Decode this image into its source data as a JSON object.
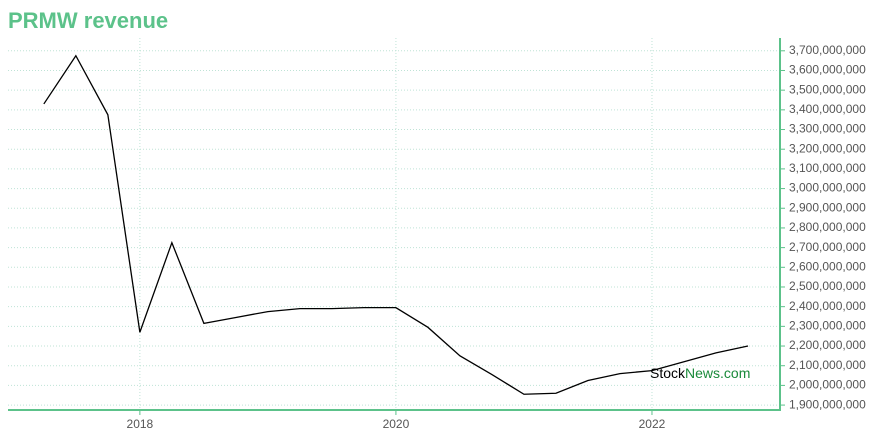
{
  "chart_data": {
    "type": "line",
    "title": "PRMW revenue",
    "watermark": {
      "first": "Stock",
      "second": "News.com"
    },
    "x": [
      2017.25,
      2017.5,
      2017.75,
      2018,
      2018.25,
      2018.5,
      2018.75,
      2019,
      2019.25,
      2019.5,
      2019.75,
      2020,
      2020.25,
      2020.5,
      2020.75,
      2021,
      2021.25,
      2021.5,
      2021.75,
      2022,
      2022.25,
      2022.5,
      2022.75
    ],
    "series": [
      {
        "color": "#000000",
        "values": [
          3430000000,
          3675000000,
          3375000000,
          2270000000,
          2725000000,
          2315000000,
          2345000000,
          2375000000,
          2390000000,
          2390000000,
          2395000000,
          2395000000,
          2295000000,
          2150000000,
          2055000000,
          1955000000,
          1960000000,
          2025000000,
          2060000000,
          2075000000,
          2120000000,
          2165000000,
          2200000000
        ]
      }
    ],
    "xlim": [
      2016.97,
      2023
    ],
    "xticks": [
      2018,
      2020,
      2022
    ],
    "ylim": [
      1875000000,
      3765000000
    ],
    "yticks": [
      {
        "value": 1900000000,
        "label": "1,900,000,000"
      },
      {
        "value": 2000000000,
        "label": "2,000,000,000"
      },
      {
        "value": 2100000000,
        "label": "2,100,000,000"
      },
      {
        "value": 2200000000,
        "label": "2,200,000,000"
      },
      {
        "value": 2300000000,
        "label": "2,300,000,000"
      },
      {
        "value": 2400000000,
        "label": "2,400,000,000"
      },
      {
        "value": 2500000000,
        "label": "2,500,000,000"
      },
      {
        "value": 2600000000,
        "label": "2,600,000,000"
      },
      {
        "value": 2700000000,
        "label": "2,700,000,000"
      },
      {
        "value": 2800000000,
        "label": "2,800,000,000"
      },
      {
        "value": 2900000000,
        "label": "2,900,000,000"
      },
      {
        "value": 3000000000,
        "label": "3,000,000,000"
      },
      {
        "value": 3100000000,
        "label": "3,100,000,000"
      },
      {
        "value": 3200000000,
        "label": "3,200,000,000"
      },
      {
        "value": 3300000000,
        "label": "3,300,000,000"
      },
      {
        "value": 3400000000,
        "label": "3,400,000,000"
      },
      {
        "value": 3500000000,
        "label": "3,500,000,000"
      },
      {
        "value": 3600000000,
        "label": "3,600,000,000"
      },
      {
        "value": 3700000000,
        "label": "3,700,000,000"
      }
    ],
    "grid": true,
    "axis_color": "#5cc28a"
  }
}
